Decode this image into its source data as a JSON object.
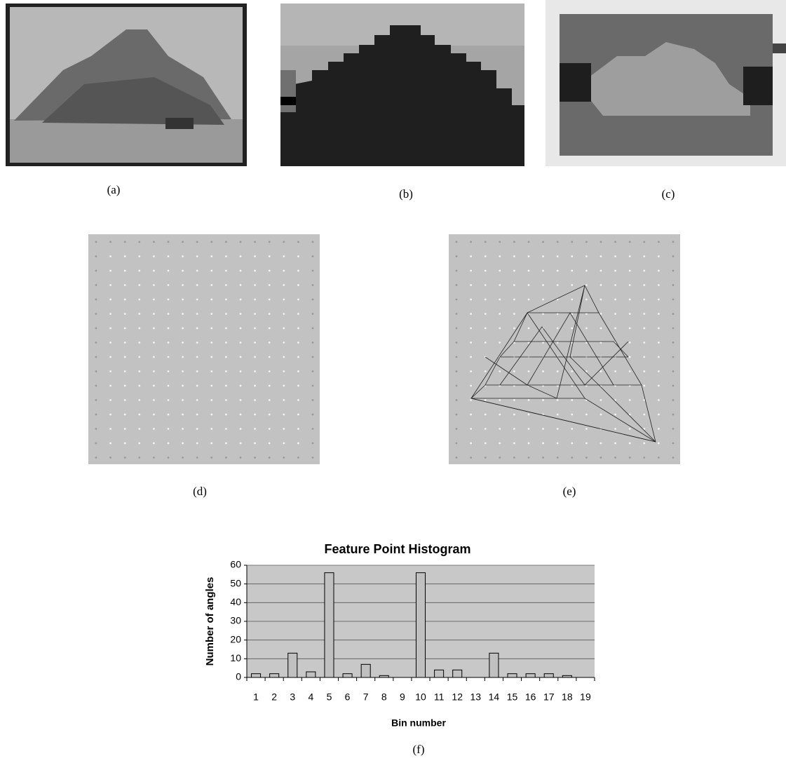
{
  "panels": {
    "labels": [
      "(a)",
      "(b)",
      "(c)",
      "(d)",
      "(e)",
      "(f)"
    ]
  },
  "chart_data": {
    "type": "bar",
    "title": "Feature Point Histogram",
    "x_label": "Bin number",
    "y_label": "Number of angles",
    "categories": [
      "1",
      "2",
      "3",
      "4",
      "5",
      "6",
      "7",
      "8",
      "9",
      "10",
      "11",
      "12",
      "13",
      "14",
      "15",
      "16",
      "17",
      "18",
      "19"
    ],
    "values": [
      2,
      2,
      13,
      3,
      56,
      2,
      7,
      1,
      0,
      56,
      4,
      4,
      0,
      13,
      2,
      2,
      2,
      1,
      0
    ],
    "color": "#c0c0c0",
    "ylim": [
      0,
      60
    ],
    "yticks": [
      0,
      10,
      20,
      30,
      40,
      50,
      60
    ],
    "grid": true
  }
}
